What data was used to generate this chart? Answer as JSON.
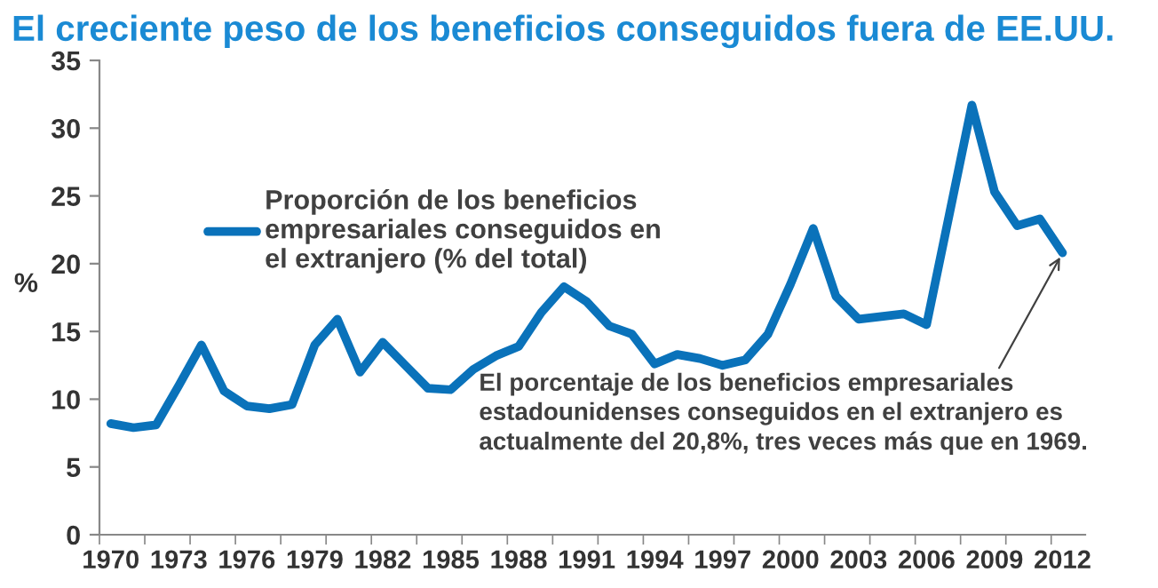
{
  "chart_data": {
    "type": "line",
    "title": "El creciente peso de los beneficios conseguidos fuera de EE.UU.",
    "ylabel": "%",
    "categories": [
      "1970",
      null,
      null,
      "1973",
      null,
      null,
      "1976",
      null,
      null,
      "1979",
      null,
      null,
      "1982",
      null,
      null,
      "1985",
      null,
      null,
      "1988",
      null,
      null,
      "1991",
      null,
      null,
      "1994",
      null,
      null,
      "1997",
      null,
      null,
      "2000",
      null,
      null,
      "2003",
      null,
      null,
      "2006",
      null,
      null,
      "2009",
      null,
      null,
      "2012"
    ],
    "series": [
      {
        "name": "Proporción de los beneficios empresariales conseguidos en el extranjero (% del total)",
        "color": "#0a72ba",
        "values": [
          8.2,
          7.9,
          8.1,
          11.0,
          14.0,
          10.6,
          9.5,
          9.3,
          9.6,
          14.0,
          15.9,
          12.0,
          14.2,
          12.5,
          10.8,
          10.7,
          12.2,
          13.2,
          13.9,
          16.4,
          18.3,
          17.2,
          15.4,
          14.8,
          12.6,
          13.3,
          13.0,
          12.5,
          12.9,
          14.8,
          18.5,
          22.6,
          17.6,
          15.9,
          16.1,
          16.3,
          15.5,
          23.6,
          31.7,
          25.3,
          22.8,
          23.3,
          20.8
        ]
      }
    ],
    "ylim": [
      0,
      35
    ],
    "yticks": [
      0,
      5,
      10,
      15,
      20,
      25,
      30,
      35
    ],
    "grid": false,
    "legend": "top",
    "marker": "none",
    "line_style": "solid",
    "annotations": [
      {
        "text": "El porcentaje de los beneficios empresariales estadounidenses conseguidos en el extranjero es actualmente del 20,8%, tres veces más que en 1969.",
        "x": "2012",
        "y": 20.8
      }
    ]
  }
}
